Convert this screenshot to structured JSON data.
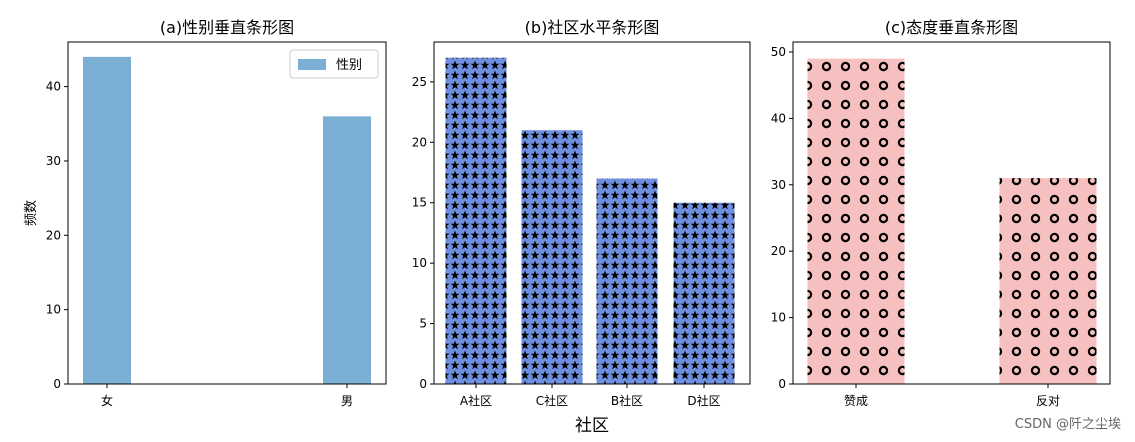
{
  "chart_data": [
    {
      "type": "bar",
      "title": "(a)性别垂直条形图",
      "categories": [
        "女",
        "男"
      ],
      "values": [
        44,
        36
      ],
      "ylabel": "频数",
      "xlabel": "",
      "ylim": [
        0,
        46
      ],
      "yticks": [
        0,
        10,
        20,
        30,
        40
      ],
      "legend": {
        "label": "性别",
        "position": "top-right"
      },
      "bar_color": "#7bafd4"
    },
    {
      "type": "bar",
      "title": "(b)社区水平条形图",
      "categories": [
        "A社区",
        "C社区",
        "B社区",
        "D社区"
      ],
      "values": [
        27,
        21,
        17,
        15
      ],
      "xlabel": "社区",
      "ylabel": "",
      "ylim": [
        0,
        28.3
      ],
      "yticks": [
        0,
        5,
        10,
        15,
        20,
        25
      ],
      "bar_color": "#6f8fe0",
      "hatch": "star"
    },
    {
      "type": "bar",
      "title": "(c)态度垂直条形图",
      "categories": [
        "赞成",
        "反对"
      ],
      "values": [
        49,
        31
      ],
      "xlabel": "",
      "ylabel": "",
      "ylim": [
        0,
        51.5
      ],
      "yticks": [
        0,
        10,
        20,
        30,
        40,
        50
      ],
      "bar_color": "#f7c0c0",
      "hatch": "ring"
    }
  ],
  "watermark": "CSDN @阡之尘埃"
}
